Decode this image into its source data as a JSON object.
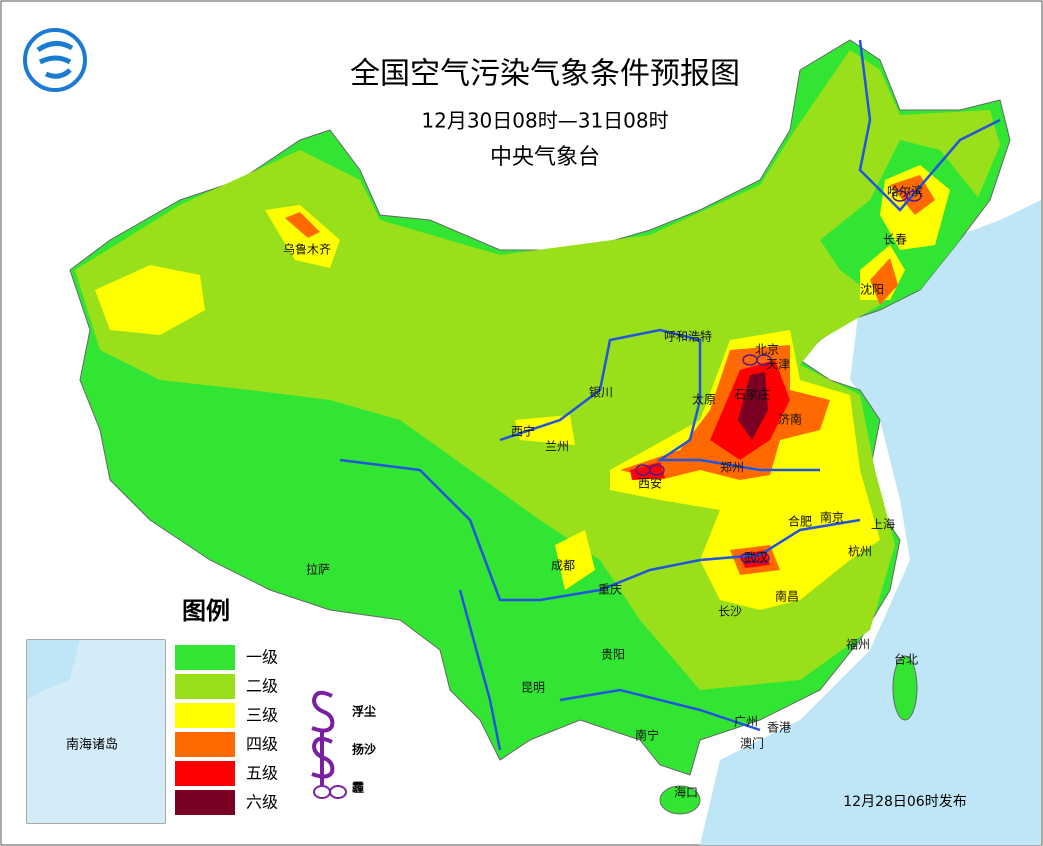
{
  "header": {
    "title": "全国空气污染气象条件预报图",
    "subtitle": "12月30日08时—31日08时",
    "agency": "中央气象台"
  },
  "legend": {
    "title": "图例",
    "levels": [
      {
        "label": "一级",
        "color": "#33e533"
      },
      {
        "label": "二级",
        "color": "#99e01a"
      },
      {
        "label": "三级",
        "color": "#ffff00"
      },
      {
        "label": "四级",
        "color": "#ff6a00"
      },
      {
        "label": "五级",
        "color": "#ff0000"
      },
      {
        "label": "六级",
        "color": "#7a0024"
      }
    ],
    "symbols": [
      "浮尘",
      "扬沙",
      "霾"
    ]
  },
  "cities": [
    "乌鲁木齐",
    "哈尔滨",
    "长春",
    "沈阳",
    "呼和浩特",
    "北京",
    "天津",
    "银川",
    "太原",
    "石家庄",
    "济南",
    "西宁",
    "兰州",
    "郑州",
    "西安",
    "合肥",
    "南京",
    "上海",
    "杭州",
    "武汉",
    "成都",
    "重庆",
    "拉萨",
    "长沙",
    "南昌",
    "福州",
    "台北",
    "贵阳",
    "昆明",
    "南宁",
    "广州",
    "香港",
    "澳门",
    "海口"
  ],
  "inset": {
    "label": "南海诸岛"
  },
  "footer": {
    "release": "12月28日06时发布"
  }
}
